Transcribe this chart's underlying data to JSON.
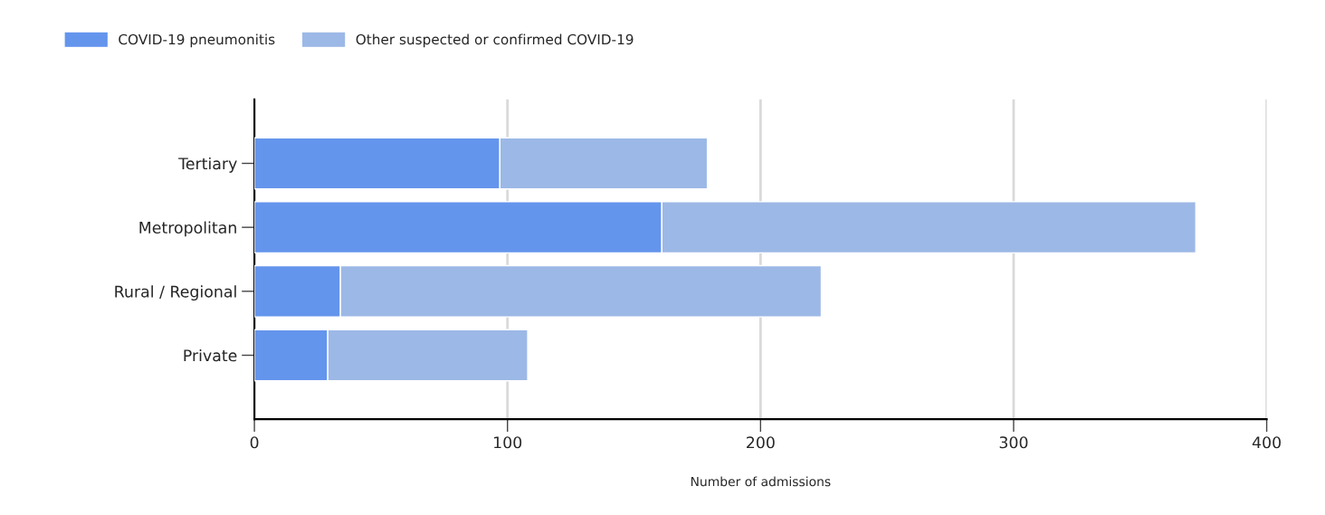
{
  "chart_data": {
    "type": "bar",
    "orientation": "horizontal",
    "stacked": true,
    "xlabel": "Number of admissions",
    "categories": [
      "Tertiary",
      "Metropolitan",
      "Rural / Regional",
      "Private"
    ],
    "series": [
      {
        "name": "COVID-19 pneumonitis",
        "color": "#6495ed",
        "values": [
          97,
          161,
          34,
          29
        ]
      },
      {
        "name": "Other suspected or confirmed COVID-19",
        "color": "#9cb8e6",
        "values": [
          82,
          211,
          190,
          79
        ]
      }
    ],
    "xlim": [
      0,
      400
    ],
    "xticks": [
      0,
      100,
      200,
      300,
      400
    ],
    "grid": "x",
    "legend": "top left"
  }
}
